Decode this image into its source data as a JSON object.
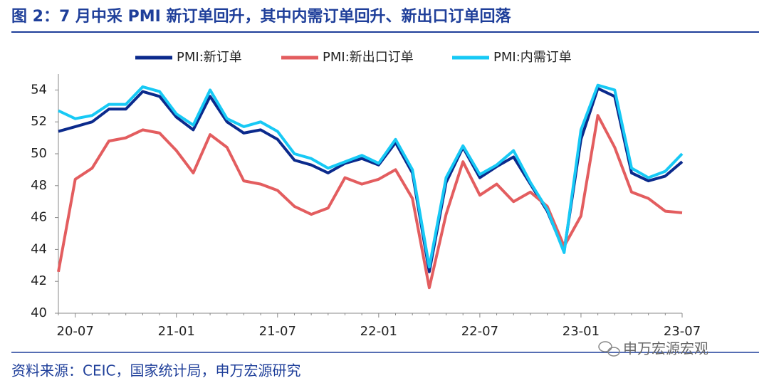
{
  "header": {
    "title": "图 2：7 月中采 PMI 新订单回升，其中内需订单回升、新出口订单回落"
  },
  "chart_data": {
    "type": "line",
    "categories": [
      null,
      "20-07",
      null,
      null,
      null,
      null,
      null,
      "21-01",
      null,
      null,
      null,
      null,
      null,
      "21-07",
      null,
      null,
      null,
      null,
      null,
      "22-01",
      null,
      null,
      null,
      null,
      null,
      "22-07",
      null,
      null,
      null,
      null,
      null,
      "23-01",
      null,
      null,
      null,
      null,
      null,
      "23-07"
    ],
    "series": [
      {
        "name": "PMI:新订单",
        "color": "#0b2a8c",
        "values": [
          51.4,
          51.7,
          52.0,
          52.8,
          52.8,
          53.9,
          53.6,
          52.3,
          51.5,
          53.6,
          52.0,
          51.3,
          51.5,
          50.9,
          49.6,
          49.3,
          48.8,
          49.4,
          49.7,
          49.3,
          50.7,
          48.8,
          42.6,
          48.2,
          50.4,
          48.5,
          49.2,
          49.8,
          48.1,
          46.4,
          43.9,
          50.9,
          54.1,
          53.6,
          48.8,
          48.3,
          48.6,
          49.5
        ]
      },
      {
        "name": "PMI:新出口订单",
        "color": "#e35d5f",
        "values": [
          42.6,
          48.4,
          49.1,
          50.8,
          51.0,
          51.5,
          51.3,
          50.2,
          48.8,
          51.2,
          50.4,
          48.3,
          48.1,
          47.7,
          46.7,
          46.2,
          46.6,
          48.5,
          48.1,
          48.4,
          49.0,
          47.2,
          41.6,
          46.2,
          49.5,
          47.4,
          48.1,
          47.0,
          47.6,
          46.7,
          44.2,
          46.1,
          52.4,
          50.4,
          47.6,
          47.2,
          46.4,
          46.3
        ]
      },
      {
        "name": "PMI:内需订单",
        "color": "#17c9f5",
        "values": [
          52.7,
          52.2,
          52.4,
          53.1,
          53.1,
          54.2,
          53.9,
          52.5,
          51.8,
          54.0,
          52.2,
          51.7,
          52.0,
          51.4,
          50.0,
          49.7,
          49.1,
          49.5,
          49.9,
          49.4,
          50.9,
          49.0,
          42.9,
          48.5,
          50.5,
          48.7,
          49.3,
          50.2,
          48.2,
          46.5,
          43.8,
          51.5,
          54.3,
          54.0,
          49.1,
          48.5,
          48.9,
          50.0
        ]
      }
    ],
    "ylim": [
      40,
      55
    ],
    "yticks": [
      40,
      42,
      44,
      46,
      48,
      50,
      52,
      54
    ],
    "grid": false,
    "legend": "top"
  },
  "footer": {
    "source": "资料来源：CEIC，国家统计局，申万宏源研究",
    "watermark": "申万宏源宏观"
  }
}
